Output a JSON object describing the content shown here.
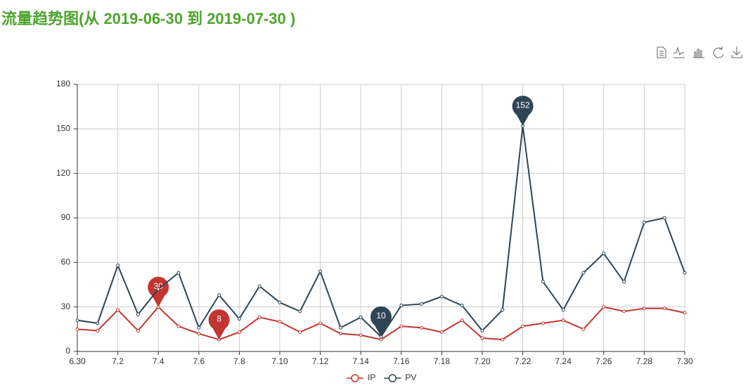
{
  "chart_data": {
    "type": "line",
    "title": "流量趋势图(从 2019-06-30 到 2019-07-30 )",
    "categories": [
      "6.30",
      null,
      "7.2",
      null,
      "7.4",
      null,
      "7.6",
      null,
      "7.8",
      null,
      "7.10",
      null,
      "7.12",
      null,
      "7.14",
      null,
      "7.16",
      null,
      "7.18",
      null,
      "7.20",
      null,
      "7.22",
      null,
      "7.24",
      null,
      "7.26",
      null,
      "7.28",
      null,
      "7.30"
    ],
    "series": [
      {
        "name": "IP",
        "color": "#c23531",
        "mark_points": [
          "max",
          "min"
        ],
        "values": [
          15,
          14,
          28,
          14,
          30,
          17,
          12,
          8,
          13,
          23,
          20,
          13,
          19,
          12,
          11,
          8,
          17,
          16,
          13,
          21,
          9,
          8,
          17,
          19,
          21,
          15,
          30,
          27,
          29,
          29,
          26
        ]
      },
      {
        "name": "PV",
        "color": "#2f4554",
        "mark_points": [
          "max",
          "min"
        ],
        "values": [
          21,
          19,
          58,
          25,
          42,
          53,
          16,
          38,
          22,
          44,
          33,
          27,
          54,
          16,
          23,
          10,
          31,
          32,
          37,
          31,
          14,
          28,
          152,
          47,
          28,
          53,
          66,
          47,
          87,
          90,
          53
        ]
      }
    ],
    "ylim": [
      0,
      180
    ],
    "yticks": [
      0,
      30,
      60,
      90,
      120,
      150,
      180
    ],
    "grid": true,
    "legend": "bottom"
  }
}
